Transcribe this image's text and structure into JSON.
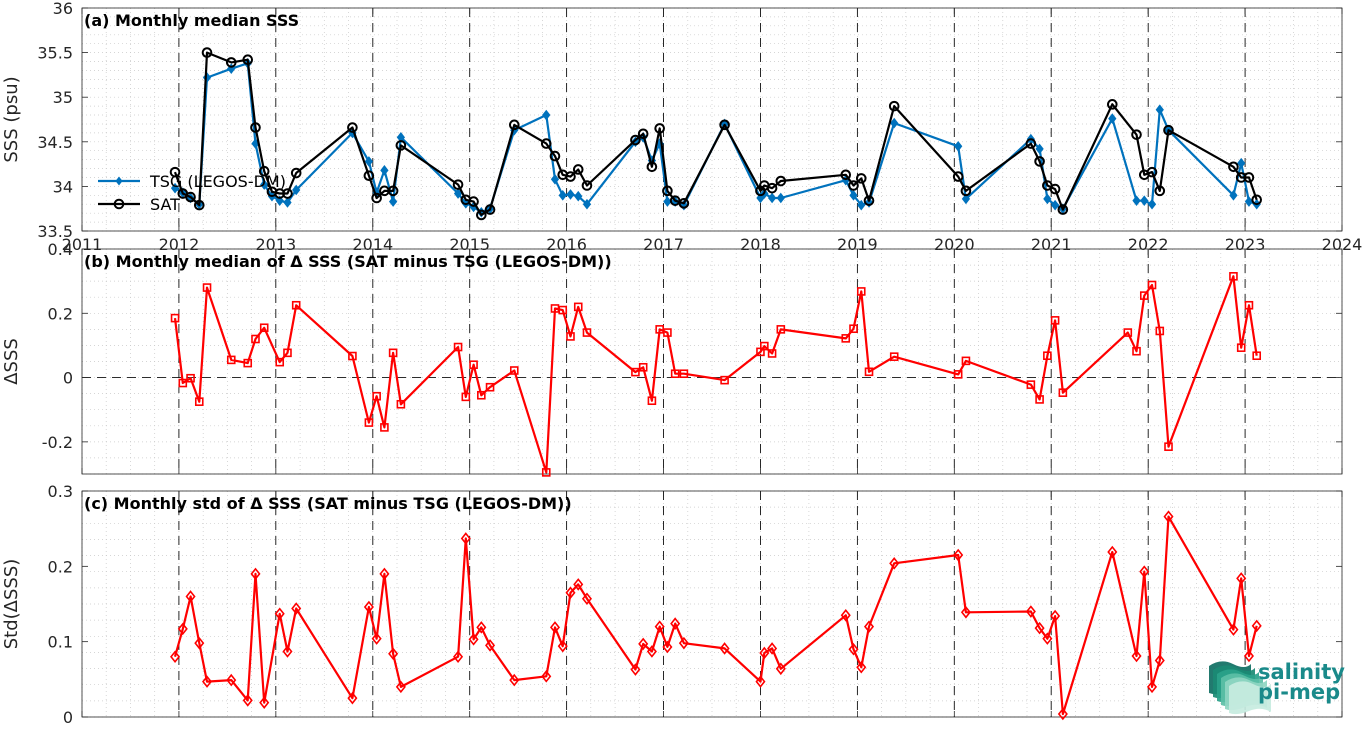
{
  "chart_data": [
    {
      "type": "line",
      "title": "(a) Monthly median SSS",
      "ylabel": "SSS (psu)",
      "xlim": [
        2011,
        2024
      ],
      "ylim": [
        33.5,
        36
      ],
      "xticks": [
        "2011",
        "2012",
        "2013",
        "2014",
        "2015",
        "2016",
        "2017",
        "2018",
        "2019",
        "2020",
        "2021",
        "2022",
        "2023",
        "2024"
      ],
      "yticks": [
        "33.5",
        "34",
        "34.5",
        "35",
        "35.5",
        "36"
      ],
      "grid": "minor dotted",
      "legend_position": "middle-left",
      "series": [
        {
          "name": "TSG (LEGOS-DM)",
          "color": "#0072BD",
          "marker": "diamond-filled",
          "x": [
            2011.96,
            2012.04,
            2012.12,
            2012.21,
            2012.29,
            2012.54,
            2012.71,
            2012.79,
            2012.88,
            2012.96,
            2013.04,
            2013.12,
            2013.21,
            2013.79,
            2013.96,
            2014.04,
            2014.12,
            2014.21,
            2014.29,
            2014.88,
            2014.96,
            2015.04,
            2015.12,
            2015.21,
            2015.46,
            2015.79,
            2015.88,
            2015.96,
            2016.04,
            2016.12,
            2016.21,
            2016.71,
            2016.79,
            2016.88,
            2016.96,
            2017.04,
            2017.12,
            2017.21,
            2017.63,
            2018.0,
            2018.04,
            2018.12,
            2018.21,
            2018.88,
            2018.96,
            2019.04,
            2019.12,
            2019.38,
            2020.04,
            2020.12,
            2020.79,
            2020.88,
            2020.96,
            2021.04,
            2021.12,
            2021.63,
            2021.88,
            2021.96,
            2022.04,
            2022.12,
            2022.21,
            2022.88,
            2022.96,
            2023.04,
            2023.12
          ],
          "y": [
            33.98,
            33.93,
            33.87,
            33.8,
            35.22,
            35.32,
            35.38,
            34.48,
            34.02,
            33.89,
            33.84,
            33.82,
            33.96,
            34.6,
            34.28,
            33.93,
            34.18,
            33.83,
            34.55,
            33.92,
            33.81,
            33.77,
            33.71,
            33.75,
            34.63,
            34.8,
            34.08,
            33.9,
            33.91,
            33.89,
            33.8,
            34.5,
            34.55,
            34.29,
            34.48,
            33.83,
            33.83,
            33.79,
            34.7,
            33.87,
            33.92,
            33.87,
            33.87,
            34.07,
            33.9,
            33.79,
            33.82,
            34.71,
            34.45,
            33.86,
            34.53,
            34.42,
            33.86,
            33.79,
            33.75,
            34.76,
            33.84,
            33.84,
            33.8,
            34.86,
            34.63,
            33.9,
            34.26,
            33.83,
            33.8
          ]
        },
        {
          "name": "SAT",
          "color": "#000000",
          "marker": "circle-open",
          "x": [
            2011.96,
            2012.04,
            2012.12,
            2012.21,
            2012.29,
            2012.54,
            2012.71,
            2012.79,
            2012.88,
            2012.96,
            2013.04,
            2013.12,
            2013.21,
            2013.79,
            2013.96,
            2014.04,
            2014.12,
            2014.21,
            2014.29,
            2014.88,
            2014.96,
            2015.04,
            2015.12,
            2015.21,
            2015.46,
            2015.79,
            2015.88,
            2015.96,
            2016.04,
            2016.12,
            2016.21,
            2016.71,
            2016.79,
            2016.88,
            2016.96,
            2017.04,
            2017.12,
            2017.21,
            2017.63,
            2018.0,
            2018.04,
            2018.12,
            2018.21,
            2018.88,
            2018.96,
            2019.04,
            2019.12,
            2019.38,
            2020.04,
            2020.12,
            2020.79,
            2020.88,
            2020.96,
            2021.04,
            2021.12,
            2021.63,
            2021.88,
            2021.96,
            2022.04,
            2022.12,
            2022.21,
            2022.88,
            2022.96,
            2023.04,
            2023.12
          ],
          "y": [
            34.16,
            33.92,
            33.88,
            33.79,
            35.5,
            35.39,
            35.42,
            34.66,
            34.17,
            33.94,
            33.92,
            33.92,
            34.15,
            34.66,
            34.12,
            33.87,
            33.95,
            33.95,
            34.46,
            34.02,
            33.85,
            33.83,
            33.68,
            33.74,
            34.69,
            34.48,
            34.34,
            34.13,
            34.11,
            34.19,
            34.01,
            34.52,
            34.59,
            34.22,
            34.65,
            33.95,
            33.84,
            33.81,
            34.69,
            33.95,
            34.01,
            33.98,
            34.06,
            34.13,
            34.01,
            34.09,
            33.84,
            34.9,
            34.11,
            33.95,
            34.48,
            34.28,
            34.01,
            33.97,
            33.74,
            34.92,
            34.58,
            34.13,
            34.16,
            33.95,
            34.63,
            34.22,
            34.1,
            34.1,
            33.85
          ]
        }
      ]
    },
    {
      "type": "line",
      "title": "(b) Monthly median of Δ SSS (SAT minus TSG (LEGOS-DM))",
      "ylabel": "ΔSSS",
      "xlim": [
        2011,
        2024
      ],
      "ylim": [
        -0.3,
        0.4
      ],
      "yticks": [
        "-0.2",
        "0",
        "0.2",
        "0.4"
      ],
      "grid": "minor dotted",
      "series": [
        {
          "color": "#FF0000",
          "marker": "square-open",
          "x": [
            2011.96,
            2012.04,
            2012.12,
            2012.21,
            2012.29,
            2012.54,
            2012.71,
            2012.79,
            2012.88,
            2013.04,
            2013.12,
            2013.21,
            2013.79,
            2013.96,
            2014.04,
            2014.12,
            2014.21,
            2014.29,
            2014.88,
            2014.96,
            2015.04,
            2015.12,
            2015.21,
            2015.46,
            2015.79,
            2015.88,
            2015.96,
            2016.04,
            2016.12,
            2016.21,
            2016.71,
            2016.79,
            2016.88,
            2016.96,
            2017.04,
            2017.12,
            2017.21,
            2017.63,
            2018.0,
            2018.04,
            2018.12,
            2018.21,
            2018.88,
            2018.96,
            2019.04,
            2019.12,
            2019.38,
            2020.04,
            2020.12,
            2020.79,
            2020.88,
            2020.96,
            2021.04,
            2021.12,
            2021.79,
            2021.88,
            2021.96,
            2022.04,
            2022.12,
            2022.21,
            2022.88,
            2022.96,
            2023.04,
            2023.12
          ],
          "y": [
            0.185,
            -0.017,
            -0.002,
            -0.075,
            0.28,
            0.055,
            0.045,
            0.12,
            0.155,
            0.048,
            0.077,
            0.225,
            0.067,
            -0.14,
            -0.058,
            -0.155,
            0.077,
            -0.083,
            0.095,
            -0.06,
            0.04,
            -0.055,
            -0.03,
            0.022,
            -0.295,
            0.215,
            0.21,
            0.128,
            0.22,
            0.14,
            0.017,
            0.032,
            -0.072,
            0.15,
            0.14,
            0.012,
            0.012,
            -0.008,
            0.08,
            0.098,
            0.075,
            0.15,
            0.122,
            0.152,
            0.268,
            0.018,
            0.065,
            0.01,
            0.052,
            -0.022,
            -0.068,
            0.068,
            0.178,
            -0.047,
            0.14,
            0.082,
            0.255,
            0.288,
            0.145,
            -0.215,
            0.315,
            0.093,
            0.225,
            0.068
          ]
        }
      ]
    },
    {
      "type": "line",
      "title": "(c) Monthly std of Δ SSS (SAT minus TSG (LEGOS-DM))",
      "ylabel": "Std(ΔSSS)",
      "xlim": [
        2011,
        2024
      ],
      "ylim": [
        0,
        0.3
      ],
      "yticks": [
        "0",
        "0.1",
        "0.2",
        "0.3"
      ],
      "grid": "minor dotted",
      "series": [
        {
          "color": "#FF0000",
          "marker": "diamond-open",
          "x": [
            2011.96,
            2012.04,
            2012.12,
            2012.21,
            2012.29,
            2012.54,
            2012.71,
            2012.79,
            2012.88,
            2013.04,
            2013.12,
            2013.21,
            2013.79,
            2013.96,
            2014.04,
            2014.12,
            2014.21,
            2014.29,
            2014.88,
            2014.96,
            2015.04,
            2015.12,
            2015.21,
            2015.46,
            2015.79,
            2015.88,
            2015.96,
            2016.04,
            2016.12,
            2016.21,
            2016.71,
            2016.79,
            2016.88,
            2016.96,
            2017.04,
            2017.12,
            2017.21,
            2017.63,
            2018.0,
            2018.04,
            2018.12,
            2018.21,
            2018.88,
            2018.96,
            2019.04,
            2019.12,
            2019.38,
            2020.04,
            2020.12,
            2020.79,
            2020.88,
            2020.96,
            2021.04,
            2021.12,
            2021.63,
            2021.88,
            2021.96,
            2022.04,
            2022.12,
            2022.21,
            2022.88,
            2022.96,
            2023.04,
            2023.12
          ],
          "y": [
            0.08,
            0.117,
            0.16,
            0.098,
            0.047,
            0.049,
            0.022,
            0.19,
            0.019,
            0.137,
            0.087,
            0.144,
            0.025,
            0.146,
            0.104,
            0.19,
            0.084,
            0.04,
            0.08,
            0.237,
            0.103,
            0.119,
            0.095,
            0.049,
            0.054,
            0.119,
            0.094,
            0.165,
            0.176,
            0.157,
            0.063,
            0.097,
            0.087,
            0.12,
            0.093,
            0.124,
            0.098,
            0.091,
            0.047,
            0.085,
            0.091,
            0.064,
            0.135,
            0.09,
            0.066,
            0.12,
            0.204,
            0.215,
            0.139,
            0.14,
            0.118,
            0.104,
            0.134,
            0.004,
            0.219,
            0.081,
            0.193,
            0.04,
            0.075,
            0.266,
            0.116,
            0.184,
            0.081,
            0.121
          ]
        }
      ]
    }
  ],
  "logo": {
    "line1": "salinity",
    "line2": "pi-mep"
  }
}
